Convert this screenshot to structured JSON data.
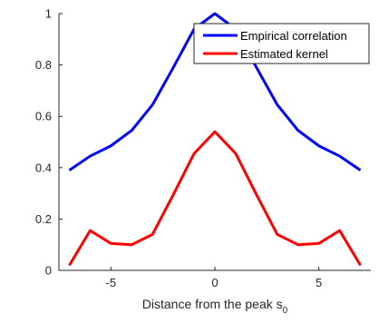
{
  "chart_data": {
    "type": "line",
    "title": "",
    "xlabel": "Distance from the peak s",
    "xlabel_subscript": "0",
    "ylabel": "",
    "xlim": [
      -7.5,
      7.5
    ],
    "ylim": [
      0,
      1
    ],
    "xticks": [
      -5,
      0,
      5
    ],
    "xtick_labels": [
      "-5",
      "0",
      "5"
    ],
    "yticks": [
      0,
      0.2,
      0.4,
      0.6,
      0.8,
      1
    ],
    "ytick_labels": [
      "0",
      "0.2",
      "0.4",
      "0.6",
      "0.8",
      "1"
    ],
    "grid": false,
    "legend_position": "top-right",
    "x": [
      -7,
      -6,
      -5,
      -4,
      -3,
      -2,
      -1,
      0,
      1,
      2,
      3,
      4,
      5,
      6,
      7
    ],
    "series": [
      {
        "name": "Empirical correlation",
        "color": "#0000ff",
        "values": [
          0.39,
          0.445,
          0.485,
          0.545,
          0.645,
          0.79,
          0.94,
          1.0,
          0.94,
          0.79,
          0.645,
          0.545,
          0.485,
          0.445,
          0.39
        ]
      },
      {
        "name": "Estimated kernel",
        "color": "#ff0000",
        "values": [
          0.02,
          0.155,
          0.105,
          0.1,
          0.14,
          0.295,
          0.455,
          0.54,
          0.455,
          0.295,
          0.14,
          0.1,
          0.105,
          0.155,
          0.02
        ]
      }
    ]
  }
}
